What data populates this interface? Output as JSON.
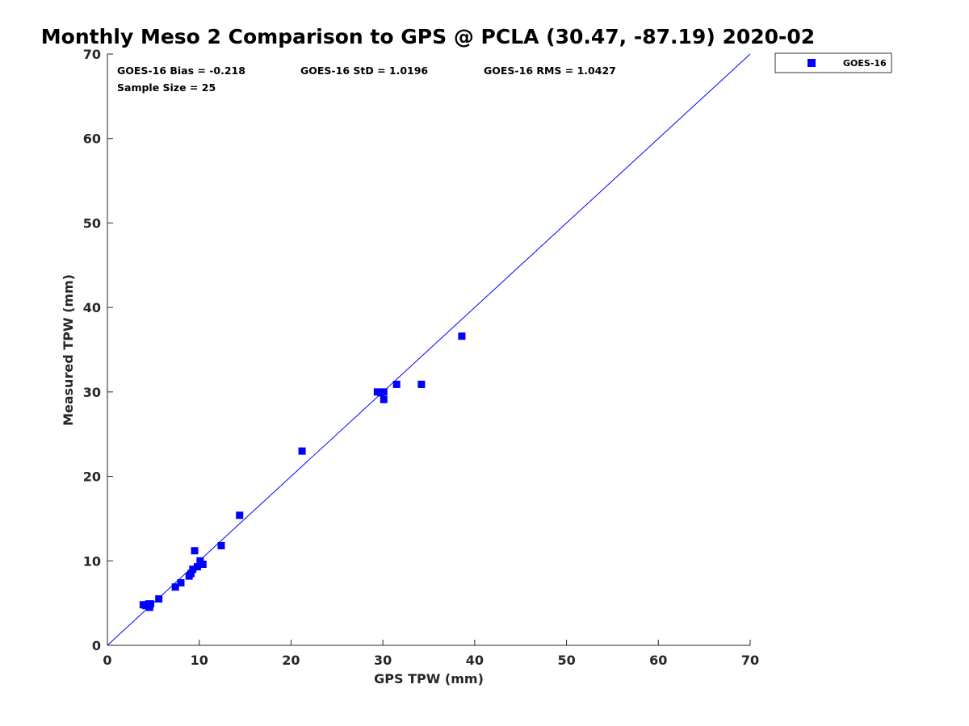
{
  "chart_data": {
    "type": "scatter",
    "title": "Monthly Meso 2 Comparison to GPS @ PCLA (30.47, -87.19) 2020-02",
    "xlabel": "GPS TPW (mm)",
    "ylabel": "Measured TPW (mm)",
    "xlim": [
      0,
      70
    ],
    "ylim": [
      0,
      70
    ],
    "xticks": [
      "0",
      "10",
      "20",
      "30",
      "40",
      "50",
      "60",
      "70"
    ],
    "yticks": [
      "0",
      "10",
      "20",
      "30",
      "40",
      "50",
      "60",
      "70"
    ],
    "grid": false,
    "legend_position": "top-right outside",
    "reference_line": {
      "type": "one-to-one",
      "color": "#0000ff"
    },
    "stats": {
      "bias": "GOES-16 Bias = -0.218",
      "std": "GOES-16 StD = 1.0196",
      "rms": "GOES-16 RMS = 1.0427",
      "sample_size": "Sample Size = 25"
    },
    "series": [
      {
        "name": "GOES-16",
        "color": "#0000ff",
        "marker": "square",
        "x": [
          3.9,
          4.2,
          4.5,
          4.6,
          5.6,
          7.4,
          8.0,
          8.9,
          9.1,
          9.3,
          9.5,
          9.8,
          10.1,
          10.4,
          12.4,
          14.4,
          21.2,
          29.4,
          29.8,
          30.1,
          30.1,
          31.5,
          34.2,
          38.6,
          4.7
        ],
        "y": [
          4.8,
          4.7,
          4.9,
          4.5,
          5.5,
          6.9,
          7.4,
          8.2,
          8.5,
          9.0,
          11.2,
          9.3,
          10.0,
          9.6,
          11.8,
          15.4,
          23.0,
          30.0,
          29.9,
          30.0,
          29.1,
          30.9,
          30.9,
          36.6,
          4.9
        ]
      }
    ]
  },
  "legend": {
    "label": "GOES-16"
  }
}
